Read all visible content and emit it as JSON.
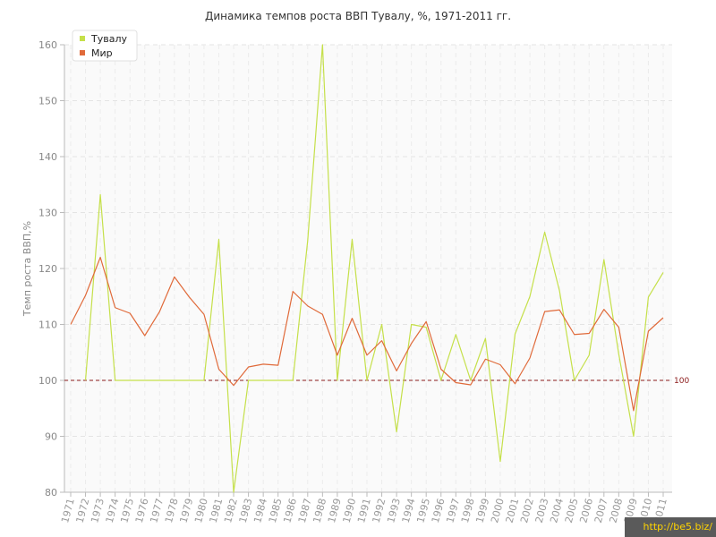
{
  "chart_data": {
    "type": "line",
    "title": "Динамика темпов роста ВВП Тувалу, %, 1971-2011 гг.",
    "ylabel": "Темп роста ВВП,%",
    "xlabel": "",
    "ylim": [
      80,
      160
    ],
    "yticks": [
      80,
      90,
      100,
      110,
      120,
      130,
      140,
      150,
      160
    ],
    "grid": true,
    "legend_position": "top-left",
    "x": [
      "1971",
      "1972",
      "1973",
      "1974",
      "1975",
      "1976",
      "1977",
      "1978",
      "1979",
      "1980",
      "1981",
      "1982",
      "1983",
      "1984",
      "1985",
      "1986",
      "1987",
      "1988",
      "1989",
      "1990",
      "1991",
      "1992",
      "1993",
      "1994",
      "1995",
      "1996",
      "1997",
      "1998",
      "1999",
      "2000",
      "2001",
      "2002",
      "2003",
      "2004",
      "2005",
      "2006",
      "2007",
      "2008",
      "2009",
      "2010",
      "2011"
    ],
    "series": [
      {
        "name": "Тувалу",
        "color": "#c5e04a",
        "values": [
          null,
          100,
          133.2,
          100,
          100,
          100,
          100,
          100,
          100,
          100,
          125.2,
          80,
          100,
          100,
          100,
          100,
          125,
          160,
          100,
          125.2,
          100,
          110,
          90.8,
          110,
          109.5,
          100,
          108.2,
          100,
          107.5,
          85.5,
          108.3,
          115,
          126.5,
          116,
          100,
          104.5,
          121.6,
          104.7,
          90,
          114.9,
          119.3
        ]
      },
      {
        "name": "Мир",
        "color": "#e06a3a",
        "values": [
          110,
          115.2,
          122,
          113,
          112,
          108,
          112.3,
          118.5,
          114.9,
          111.8,
          102,
          99.1,
          102.4,
          102.9,
          102.7,
          115.9,
          113.3,
          111.8,
          104.5,
          111.1,
          104.5,
          107.1,
          101.7,
          106.6,
          110.5,
          102,
          99.6,
          99.2,
          103.8,
          102.8,
          99.4,
          104,
          112.3,
          112.6,
          108.2,
          108.4,
          112.7,
          109.5,
          94.6,
          108.8,
          111.2
        ]
      }
    ],
    "reference_line": {
      "value": 100,
      "label": "100",
      "color": "#8b1a1a"
    }
  },
  "watermark": "http://be5.biz/"
}
